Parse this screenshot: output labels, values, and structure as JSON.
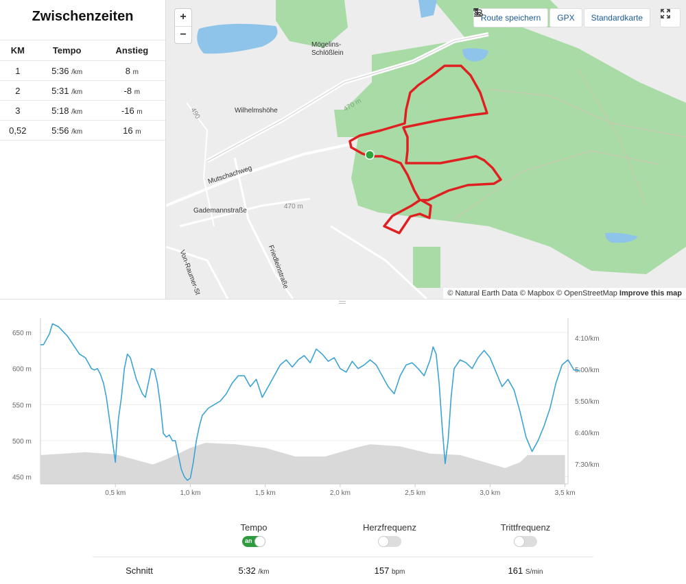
{
  "splits": {
    "title": "Zwischenzeiten",
    "headers": [
      "KM",
      "Tempo",
      "Anstieg"
    ],
    "rows": [
      {
        "km": "1",
        "pace": "5:36",
        "pace_unit": "/km",
        "elev": "8",
        "elev_unit": "m"
      },
      {
        "km": "2",
        "pace": "5:31",
        "pace_unit": "/km",
        "elev": "-8",
        "elev_unit": "m"
      },
      {
        "km": "3",
        "pace": "5:18",
        "pace_unit": "/km",
        "elev": "-16",
        "elev_unit": "m"
      },
      {
        "km": "0,52",
        "pace": "5:56",
        "pace_unit": "/km",
        "elev": "16",
        "elev_unit": "m"
      }
    ]
  },
  "map": {
    "zoom_in": "+",
    "zoom_out": "−",
    "save_route": "Route speichern",
    "gpx": "GPX",
    "map_type": "Standardkarte",
    "labels": {
      "moegelins": "Mögelins-",
      "schloesslein": "Schlößlein",
      "wilhelmshoehe": "Wilhelmshöhe",
      "mutschachweg": "Mutschachweg",
      "gademann": "Gademannstraße",
      "contour470a": "470 m",
      "contour470b": "470 m",
      "vonraumer": "Von-Raumer-St",
      "friedlein": "Friedleinstraße",
      "contour490": "490"
    },
    "attribution": "© Natural Earth Data © Mapbox © OpenStreetMap",
    "improve": "Improve this map"
  },
  "chart_data": {
    "type": "line",
    "x_ticks": [
      "0,5 km",
      "1,0 km",
      "1,5 km",
      "2,0 km",
      "2,5 km",
      "3,0 km",
      "3,5 km"
    ],
    "y_left_ticks": [
      "650 m",
      "600 m",
      "550 m",
      "500 m",
      "450 m"
    ],
    "y_right_ticks": [
      "4:10/km",
      "5:00/km",
      "5:50/km",
      "6:40/km",
      "7:30/km"
    ],
    "elevation_m": [
      [
        0,
        480
      ],
      [
        0.3,
        484
      ],
      [
        0.5,
        481
      ],
      [
        0.75,
        467
      ],
      [
        0.85,
        475
      ],
      [
        1.0,
        490
      ],
      [
        1.1,
        497
      ],
      [
        1.3,
        495
      ],
      [
        1.5,
        490
      ],
      [
        1.7,
        478
      ],
      [
        1.9,
        478
      ],
      [
        2.1,
        490
      ],
      [
        2.2,
        495
      ],
      [
        2.4,
        492
      ],
      [
        2.6,
        482
      ],
      [
        2.8,
        480
      ],
      [
        3.0,
        468
      ],
      [
        3.1,
        462
      ],
      [
        3.2,
        470
      ],
      [
        3.25,
        480
      ],
      [
        3.5,
        480
      ]
    ],
    "pace_series": [
      [
        0,
        633
      ],
      [
        0.02,
        633
      ],
      [
        0.06,
        648
      ],
      [
        0.08,
        662
      ],
      [
        0.12,
        658
      ],
      [
        0.18,
        645
      ],
      [
        0.26,
        620
      ],
      [
        0.3,
        615
      ],
      [
        0.34,
        600
      ],
      [
        0.36,
        598
      ],
      [
        0.38,
        600
      ],
      [
        0.4,
        592
      ],
      [
        0.42,
        580
      ],
      [
        0.44,
        560
      ],
      [
        0.46,
        530
      ],
      [
        0.48,
        500
      ],
      [
        0.5,
        470
      ],
      [
        0.52,
        530
      ],
      [
        0.54,
        560
      ],
      [
        0.56,
        600
      ],
      [
        0.58,
        620
      ],
      [
        0.6,
        615
      ],
      [
        0.62,
        600
      ],
      [
        0.64,
        585
      ],
      [
        0.66,
        575
      ],
      [
        0.68,
        565
      ],
      [
        0.7,
        560
      ],
      [
        0.72,
        580
      ],
      [
        0.74,
        600
      ],
      [
        0.76,
        598
      ],
      [
        0.78,
        580
      ],
      [
        0.8,
        550
      ],
      [
        0.82,
        510
      ],
      [
        0.84,
        505
      ],
      [
        0.86,
        508
      ],
      [
        0.88,
        500
      ],
      [
        0.9,
        500
      ],
      [
        0.92,
        480
      ],
      [
        0.94,
        460
      ],
      [
        0.96,
        450
      ],
      [
        0.98,
        445
      ],
      [
        1.0,
        448
      ],
      [
        1.02,
        470
      ],
      [
        1.04,
        500
      ],
      [
        1.06,
        520
      ],
      [
        1.08,
        535
      ],
      [
        1.12,
        545
      ],
      [
        1.16,
        550
      ],
      [
        1.2,
        555
      ],
      [
        1.24,
        565
      ],
      [
        1.28,
        580
      ],
      [
        1.32,
        590
      ],
      [
        1.36,
        590
      ],
      [
        1.4,
        575
      ],
      [
        1.44,
        585
      ],
      [
        1.48,
        560
      ],
      [
        1.52,
        575
      ],
      [
        1.56,
        590
      ],
      [
        1.6,
        605
      ],
      [
        1.64,
        612
      ],
      [
        1.68,
        602
      ],
      [
        1.72,
        612
      ],
      [
        1.76,
        618
      ],
      [
        1.8,
        608
      ],
      [
        1.84,
        627
      ],
      [
        1.88,
        620
      ],
      [
        1.92,
        610
      ],
      [
        1.96,
        615
      ],
      [
        2.0,
        600
      ],
      [
        2.04,
        595
      ],
      [
        2.08,
        610
      ],
      [
        2.12,
        600
      ],
      [
        2.16,
        605
      ],
      [
        2.2,
        612
      ],
      [
        2.24,
        605
      ],
      [
        2.28,
        590
      ],
      [
        2.32,
        575
      ],
      [
        2.36,
        565
      ],
      [
        2.4,
        590
      ],
      [
        2.44,
        605
      ],
      [
        2.48,
        608
      ],
      [
        2.52,
        600
      ],
      [
        2.56,
        590
      ],
      [
        2.6,
        612
      ],
      [
        2.62,
        630
      ],
      [
        2.64,
        620
      ],
      [
        2.66,
        580
      ],
      [
        2.68,
        520
      ],
      [
        2.7,
        468
      ],
      [
        2.72,
        500
      ],
      [
        2.74,
        560
      ],
      [
        2.76,
        600
      ],
      [
        2.8,
        612
      ],
      [
        2.84,
        608
      ],
      [
        2.88,
        600
      ],
      [
        2.92,
        615
      ],
      [
        2.96,
        625
      ],
      [
        3.0,
        615
      ],
      [
        3.04,
        595
      ],
      [
        3.08,
        575
      ],
      [
        3.12,
        585
      ],
      [
        3.16,
        570
      ],
      [
        3.2,
        540
      ],
      [
        3.24,
        505
      ],
      [
        3.28,
        485
      ],
      [
        3.32,
        500
      ],
      [
        3.36,
        520
      ],
      [
        3.4,
        545
      ],
      [
        3.44,
        580
      ],
      [
        3.48,
        605
      ],
      [
        3.52,
        612
      ],
      [
        3.56,
        598
      ],
      [
        3.6,
        597
      ]
    ],
    "x_range": [
      0,
      3.52
    ],
    "y_range": [
      440,
      670
    ]
  },
  "stats": {
    "toggles": [
      {
        "label": "Tempo",
        "on": true,
        "on_label": "an"
      },
      {
        "label": "Herzfrequenz",
        "on": false
      },
      {
        "label": "Trittfrequenz",
        "on": false
      }
    ],
    "avg_label": "Schnitt",
    "avg_pace": "5:32",
    "avg_pace_unit": "/km",
    "avg_hr": "157",
    "avg_hr_unit": "bpm",
    "avg_cad": "161",
    "avg_cad_unit": "S/min"
  },
  "colors": {
    "route": "#e02020",
    "pace_line": "#3aa3d4",
    "elevation_fill": "#d9d9d9",
    "forest": "#a9dba6",
    "toggle_on": "#2e9b3e"
  }
}
